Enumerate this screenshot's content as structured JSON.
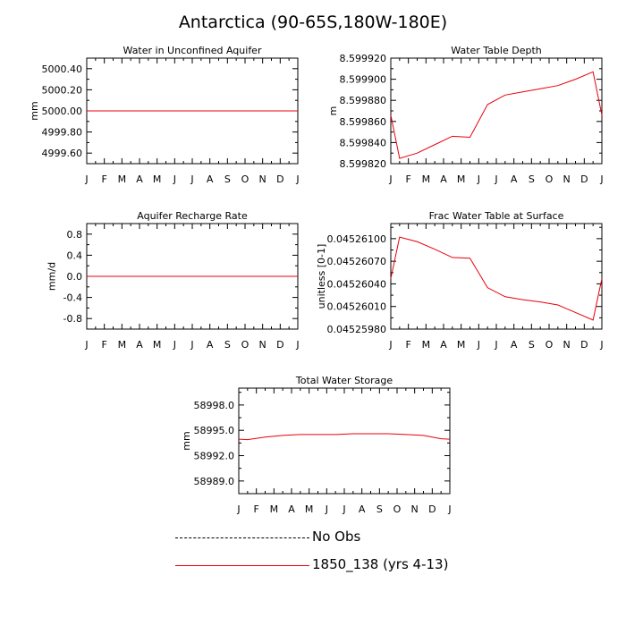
{
  "figure": {
    "title": "Antarctica (90-65S,180W-180E)"
  },
  "colors": {
    "model": "#e8000b",
    "obs": "#000000",
    "axis": "#000000"
  },
  "months": [
    "J",
    "F",
    "M",
    "A",
    "M",
    "J",
    "J",
    "A",
    "S",
    "O",
    "N",
    "D",
    "J"
  ],
  "chart_data": [
    {
      "type": "line",
      "id": "water-unconfined",
      "title": "Water in Unconfined Aquifer",
      "xlabel": "",
      "ylabel": "mm",
      "ylim": [
        4999.5,
        5000.5
      ],
      "yticks": [
        4999.6,
        4999.8,
        5000.0,
        5000.2,
        5000.4
      ],
      "yticklabels": [
        "4999.60",
        "4999.80",
        "5000.00",
        "5000.20",
        "5000.40"
      ],
      "yminor": [
        4999.5,
        4999.7,
        4999.9,
        5000.1,
        5000.3,
        5000.5
      ],
      "x": [
        0.5,
        1.5,
        2.5,
        3.5,
        4.5,
        5.5,
        6.5,
        7.5,
        8.5,
        9.5,
        10.5,
        11.5
      ],
      "series": [
        {
          "values": [
            5000.0,
            5000.0,
            5000.0,
            5000.0,
            5000.0,
            5000.0,
            5000.0,
            5000.0,
            5000.0,
            5000.0,
            5000.0,
            5000.0
          ]
        }
      ]
    },
    {
      "type": "line",
      "id": "water-table-depth",
      "title": "Water Table Depth",
      "xlabel": "",
      "ylabel": "m",
      "ylim": [
        8.59982,
        8.59992
      ],
      "yticks": [
        8.59982,
        8.59984,
        8.59986,
        8.59988,
        8.5999,
        8.59992
      ],
      "yticklabels": [
        "8.599820",
        "8.599840",
        "8.599860",
        "8.599880",
        "8.599900",
        "8.599920"
      ],
      "yminor": [
        8.59983,
        8.59985,
        8.59987,
        8.59989,
        8.59991
      ],
      "x": [
        0.5,
        1.5,
        2.5,
        3.5,
        4.5,
        5.5,
        6.5,
        7.5,
        8.5,
        9.5,
        10.5,
        11.5
      ],
      "series": [
        {
          "values": [
            8.599825,
            8.59983,
            8.599838,
            8.599846,
            8.599845,
            8.599876,
            8.599885,
            8.599888,
            8.599891,
            8.599894,
            8.5999,
            8.599907
          ]
        }
      ]
    },
    {
      "type": "line",
      "id": "aquifer-recharge",
      "title": "Aquifer Recharge Rate",
      "xlabel": "",
      "ylabel": "mm/d",
      "ylim": [
        -1.0,
        1.0
      ],
      "yticks": [
        -0.8,
        -0.4,
        0.0,
        0.4,
        0.8
      ],
      "yticklabels": [
        "-0.8",
        "-0.4",
        "0.0",
        "0.4",
        "0.8"
      ],
      "yminor": [
        -1.0,
        -0.6,
        -0.2,
        0.2,
        0.6,
        1.0
      ],
      "x": [
        0.5,
        1.5,
        2.5,
        3.5,
        4.5,
        5.5,
        6.5,
        7.5,
        8.5,
        9.5,
        10.5,
        11.5
      ],
      "series": [
        {
          "values": [
            0,
            0,
            0,
            0,
            0,
            0,
            0,
            0,
            0,
            0,
            0,
            0
          ]
        }
      ]
    },
    {
      "type": "line",
      "id": "frac-water-table",
      "title": "Frac Water Table at Surface",
      "xlabel": "",
      "ylabel": "unitless [0-1]",
      "ylim": [
        0.0452598,
        0.0452612
      ],
      "yticks": [
        0.0452598,
        0.0452601,
        0.0452604,
        0.0452607,
        0.045261
      ],
      "yticklabels": [
        "0.04525980",
        "0.04526010",
        "0.04526040",
        "0.04526070",
        "0.04526100"
      ],
      "yminor": [
        0.04525995,
        0.04526025,
        0.04526055,
        0.04526085,
        0.04526115
      ],
      "x": [
        0.5,
        1.5,
        2.5,
        3.5,
        4.5,
        5.5,
        6.5,
        7.5,
        8.5,
        9.5,
        10.5,
        11.5
      ],
      "series": [
        {
          "values": [
            0.04526102,
            0.04526096,
            0.04526086,
            0.04526075,
            0.04526074,
            0.04526035,
            0.04526023,
            0.04526019,
            0.04526016,
            0.04526012,
            0.04526002,
            0.04525992
          ]
        }
      ]
    },
    {
      "type": "line",
      "id": "total-water-storage",
      "title": "Total Water Storage",
      "xlabel": "",
      "ylabel": "mm",
      "ylim": [
        58987.5,
        59000.0
      ],
      "yticks": [
        58989.0,
        58992.0,
        58995.0,
        58998.0
      ],
      "yticklabels": [
        "58989.0",
        "58992.0",
        "58995.0",
        "58998.0"
      ],
      "yminor": [
        58987.5,
        58990.5,
        58993.5,
        58996.5,
        58999.5
      ],
      "x": [
        0.5,
        1.5,
        2.5,
        3.5,
        4.5,
        5.5,
        6.5,
        7.5,
        8.5,
        9.5,
        10.5,
        11.5
      ],
      "series": [
        {
          "values": [
            58993.9,
            58994.2,
            58994.4,
            58994.5,
            58994.5,
            58994.5,
            58994.6,
            58994.6,
            58994.6,
            58994.5,
            58994.4,
            58994.0
          ]
        }
      ]
    }
  ],
  "legend": {
    "position": "bottom-center",
    "entries": [
      {
        "label": "No Obs",
        "style": "dashed"
      },
      {
        "label": "1850_138 (yrs 4-13)",
        "style": "solid"
      }
    ]
  }
}
